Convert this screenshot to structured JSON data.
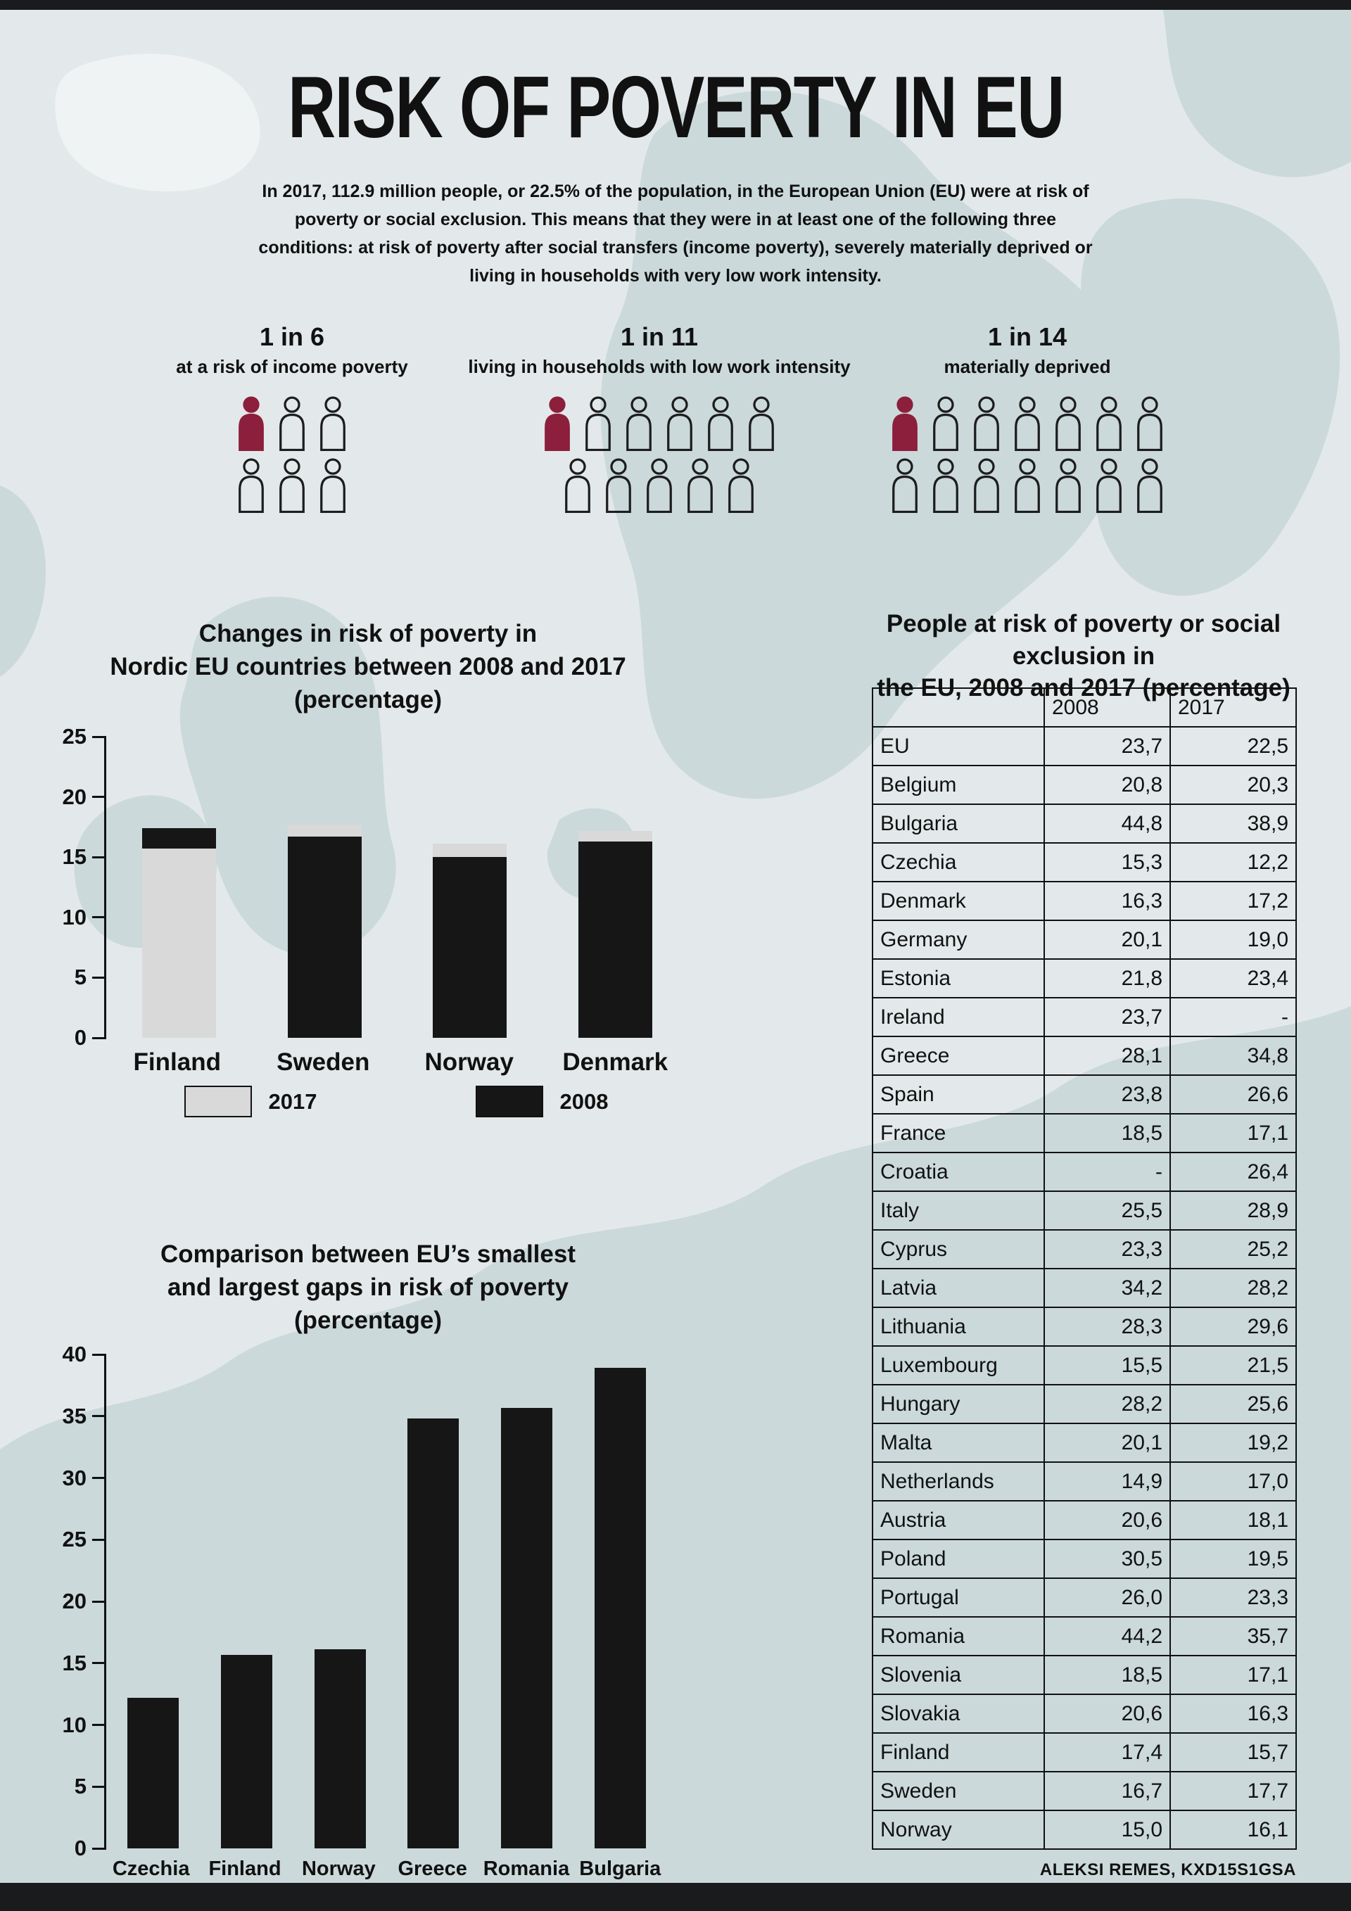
{
  "page": {
    "title": "RISK OF POVERTY IN EU",
    "intro": "In 2017, 112.9 million people, or 22.5% of the population, in the European Union (EU) were at risk of poverty or social exclusion. This means that they were in at least one of the following three conditions: at risk of poverty after social transfers (income poverty), severely materially deprived or living in households with very low work intensity.",
    "credit": "ALEKSI REMES, KXD15S1GSA"
  },
  "colors": {
    "accent": "#8c1f3c",
    "ink": "#1d1d1d",
    "bar_dark": "#161616",
    "bar_light": "#d9d9d9",
    "background": "#e3e9ea",
    "map": "#cbd9db"
  },
  "pictograms": [
    {
      "ratio": "1 in 6",
      "label": "at a risk of income poverty",
      "total": 6,
      "filled": 1,
      "rows": [
        3,
        3
      ]
    },
    {
      "ratio": "1 in 11",
      "label": "living in households with low work intensity",
      "total": 11,
      "filled": 1,
      "rows": [
        6,
        5
      ]
    },
    {
      "ratio": "1 in 14",
      "label": "materially deprived",
      "total": 14,
      "filled": 1,
      "rows": [
        7,
        7
      ]
    }
  ],
  "chart_data": [
    {
      "type": "bar",
      "title": "Changes in risk of poverty in Nordic EU countries between 2008 and 2017 (percentage)",
      "title_lines": [
        "Changes in risk of poverty in",
        "Nordic EU countries between 2008 and 2017",
        "(percentage)"
      ],
      "categories": [
        "Finland",
        "Sweden",
        "Norway",
        "Denmark"
      ],
      "series": [
        {
          "name": "2017",
          "color_key": "bar_light",
          "values": [
            15.7,
            17.7,
            16.1,
            17.2
          ]
        },
        {
          "name": "2008",
          "color_key": "bar_dark",
          "values": [
            17.4,
            16.7,
            15.0,
            16.3
          ]
        }
      ],
      "ylim": [
        0,
        25
      ],
      "ytick_step": 5,
      "grid": false,
      "legend_position": "bottom"
    },
    {
      "type": "bar",
      "title": "Comparison between EU’s smallest and largest gaps in risk of poverty (percentage)",
      "title_lines": [
        "Comparison between EU’s smallest",
        "and largest gaps in risk of poverty",
        "(percentage)"
      ],
      "categories": [
        "Czechia",
        "Finland",
        "Norway",
        "Greece",
        "Romania",
        "Bulgaria"
      ],
      "values": [
        12.2,
        15.7,
        16.1,
        34.8,
        35.7,
        38.9
      ],
      "ylim": [
        0,
        40
      ],
      "ytick_step": 5,
      "grid": false
    }
  ],
  "table": {
    "title_lines": [
      "People at risk of poverty or social exclusion in",
      "the EU, 2008 and 2017 (percentage)"
    ],
    "columns": [
      "",
      "2008",
      "2017"
    ],
    "rows": [
      [
        "EU",
        "23,7",
        "22,5"
      ],
      [
        "Belgium",
        "20,8",
        "20,3"
      ],
      [
        "Bulgaria",
        "44,8",
        "38,9"
      ],
      [
        "Czechia",
        "15,3",
        "12,2"
      ],
      [
        "Denmark",
        "16,3",
        "17,2"
      ],
      [
        "Germany",
        "20,1",
        "19,0"
      ],
      [
        "Estonia",
        "21,8",
        "23,4"
      ],
      [
        "Ireland",
        "23,7",
        "-"
      ],
      [
        "Greece",
        "28,1",
        "34,8"
      ],
      [
        "Spain",
        "23,8",
        "26,6"
      ],
      [
        "France",
        "18,5",
        "17,1"
      ],
      [
        "Croatia",
        "-",
        "26,4"
      ],
      [
        "Italy",
        "25,5",
        "28,9"
      ],
      [
        "Cyprus",
        "23,3",
        "25,2"
      ],
      [
        "Latvia",
        "34,2",
        "28,2"
      ],
      [
        "Lithuania",
        "28,3",
        "29,6"
      ],
      [
        "Luxembourg",
        "15,5",
        "21,5"
      ],
      [
        "Hungary",
        "28,2",
        "25,6"
      ],
      [
        "Malta",
        "20,1",
        "19,2"
      ],
      [
        "Netherlands",
        "14,9",
        "17,0"
      ],
      [
        "Austria",
        "20,6",
        "18,1"
      ],
      [
        "Poland",
        "30,5",
        "19,5"
      ],
      [
        "Portugal",
        "26,0",
        "23,3"
      ],
      [
        "Romania",
        "44,2",
        "35,7"
      ],
      [
        "Slovenia",
        "18,5",
        "17,1"
      ],
      [
        "Slovakia",
        "20,6",
        "16,3"
      ],
      [
        "Finland",
        "17,4",
        "15,7"
      ],
      [
        "Sweden",
        "16,7",
        "17,7"
      ],
      [
        "Norway",
        "15,0",
        "16,1"
      ]
    ]
  }
}
